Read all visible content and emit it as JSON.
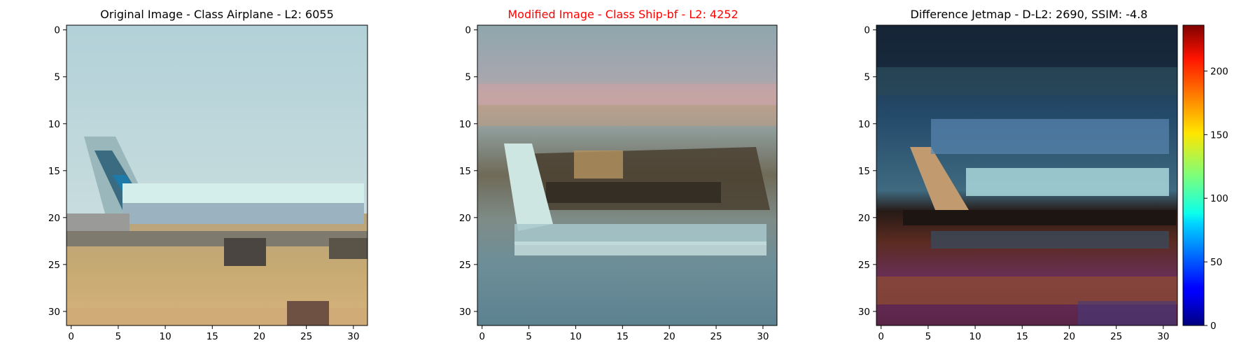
{
  "panels": [
    {
      "title": "Original Image - Class Airplane - L2: 6055",
      "title_color": "#000000",
      "x_ticks": [
        0,
        5,
        10,
        15,
        20,
        25,
        30
      ],
      "y_ticks": [
        0,
        5,
        10,
        15,
        20,
        25,
        30
      ]
    },
    {
      "title": "Modified Image - Class Ship-bf - L2: 4252",
      "title_color": "#ff0000",
      "x_ticks": [
        0,
        5,
        10,
        15,
        20,
        25,
        30
      ],
      "y_ticks": [
        0,
        5,
        10,
        15,
        20,
        25,
        30
      ]
    },
    {
      "title": "Difference Jetmap - D-L2: 2690, SSIM: -4.8",
      "title_color": "#000000",
      "x_ticks": [
        0,
        5,
        10,
        15,
        20,
        25,
        30
      ],
      "y_ticks": [
        0,
        5,
        10,
        15,
        20,
        25,
        30
      ]
    }
  ],
  "colorbar": {
    "colormap": "jet",
    "ticks": [
      0,
      50,
      100,
      150,
      200
    ],
    "range": [
      0,
      236
    ]
  },
  "image_grid_size": 32
}
